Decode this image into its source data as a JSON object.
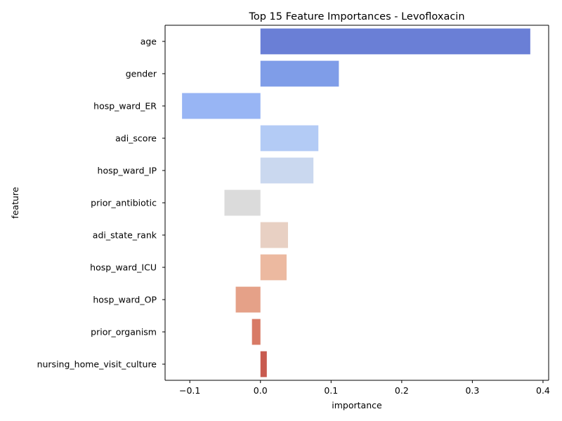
{
  "chart_data": {
    "type": "bar",
    "orientation": "horizontal",
    "title": "Top 15 Feature Importances - Levofloxacin",
    "xlabel": "importance",
    "ylabel": "feature",
    "xlim": [
      -0.135,
      0.408
    ],
    "xticks": [
      -0.1,
      0.0,
      0.1,
      0.2,
      0.3,
      0.4
    ],
    "xtick_labels": [
      "−0.1",
      "0.0",
      "0.1",
      "0.2",
      "0.3",
      "0.4"
    ],
    "grid": false,
    "categories": [
      "age",
      "gender",
      "hosp_ward_ER",
      "adi_score",
      "hosp_ward_IP",
      "prior_antibiotic",
      "adi_state_rank",
      "hosp_ward_ICU",
      "hosp_ward_OP",
      "prior_organism",
      "nursing_home_visit_culture"
    ],
    "values": [
      0.382,
      0.111,
      -0.111,
      0.082,
      0.075,
      -0.051,
      0.039,
      0.037,
      -0.035,
      -0.012,
      0.009
    ],
    "colors": [
      "#6a7fd6",
      "#7f9de8",
      "#98b5f4",
      "#b3cbf5",
      "#cad8ef",
      "#dbdbdb",
      "#e8d0c3",
      "#ecb9a0",
      "#e5a188",
      "#d87a66",
      "#c85a4f"
    ]
  }
}
